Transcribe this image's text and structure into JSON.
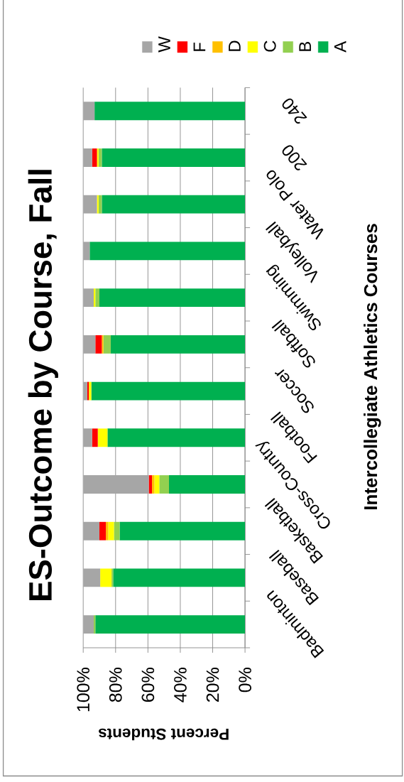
{
  "chart_data": {
    "type": "bar",
    "orientation": "horizontal",
    "stacked": true,
    "title": "ES-Outcome by Course, Fall",
    "xlabel": "Percent Students",
    "ylabel": "Intercollegiate Athletics Courses",
    "categories": [
      "240",
      "200",
      "Water Polo",
      "Volleyball",
      "Swimming",
      "Softball",
      "Soccer",
      "Football",
      "Cross-Country",
      "Basketball",
      "Baseball",
      "Badminton"
    ],
    "series": [
      {
        "name": "A",
        "color": "#00b050",
        "values": [
          93,
          88.5,
          88.5,
          96,
          90,
          83,
          95,
          85,
          47,
          77.5,
          81.5,
          92.5
        ]
      },
      {
        "name": "B",
        "color": "#92d050",
        "values": [
          null,
          2,
          2,
          null,
          2.5,
          4.5,
          null,
          null,
          6,
          3.5,
          1,
          1
        ]
      },
      {
        "name": "C",
        "color": "#ffff00",
        "values": [
          null,
          1,
          1,
          null,
          1,
          null,
          1.5,
          6,
          3,
          3.5,
          7,
          null
        ]
      },
      {
        "name": "D",
        "color": "#ffc000",
        "values": [
          null,
          null,
          null,
          null,
          null,
          1,
          null,
          null,
          1.5,
          1.5,
          null,
          null
        ]
      },
      {
        "name": "F",
        "color": "#ff0000",
        "values": [
          null,
          3,
          null,
          null,
          null,
          4,
          1,
          3.5,
          2,
          4,
          null,
          null
        ]
      },
      {
        "name": "W",
        "color": "#a6a6a6",
        "values": [
          7,
          5.5,
          8.5,
          4,
          6.5,
          7.5,
          2.5,
          5.5,
          40.5,
          10,
          10.5,
          6.5
        ]
      }
    ],
    "xlim": [
      100,
      0
    ],
    "xticks": [
      {
        "value": 100,
        "label": "100%"
      },
      {
        "value": 80,
        "label": "80%"
      },
      {
        "value": 60,
        "label": "60%"
      },
      {
        "value": 40,
        "label": "40%"
      },
      {
        "value": 20,
        "label": "20%"
      },
      {
        "value": 0,
        "label": "0%"
      }
    ],
    "grid": "x",
    "legend": "top"
  }
}
